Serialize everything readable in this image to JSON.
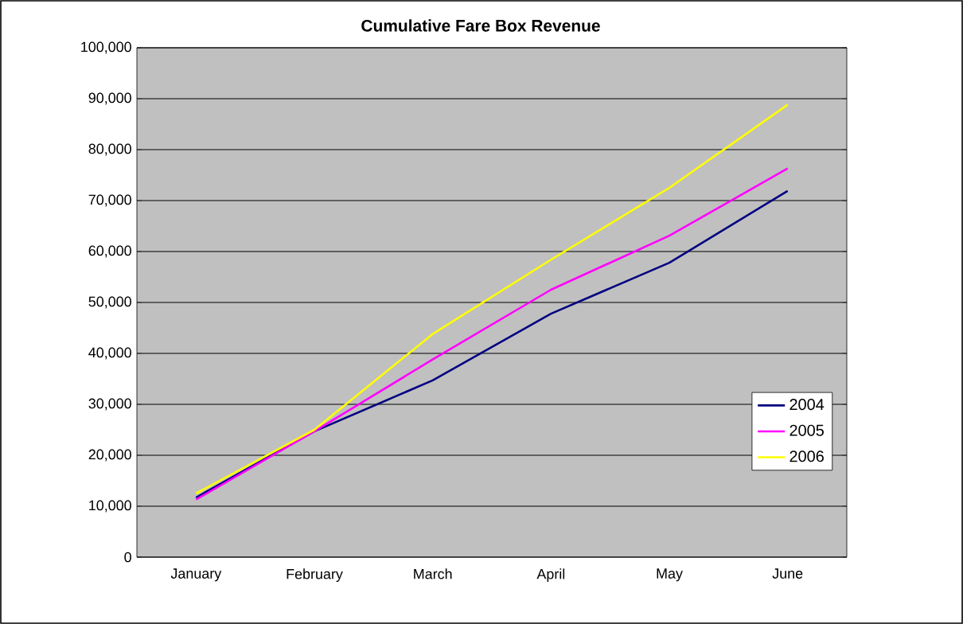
{
  "chart_data": {
    "type": "line",
    "title": "Cumulative Fare Box Revenue",
    "categories": [
      "January",
      "February",
      "March",
      "April",
      "May",
      "June"
    ],
    "series": [
      {
        "name": "2004",
        "color": "#000080",
        "values": [
          11700,
          24700,
          34700,
          47800,
          57800,
          71900
        ]
      },
      {
        "name": "2005",
        "color": "#ff00ff",
        "values": [
          11300,
          24700,
          38800,
          52500,
          63100,
          76300
        ]
      },
      {
        "name": "2006",
        "color": "#ffff00",
        "values": [
          12500,
          25000,
          43800,
          58400,
          72500,
          88800
        ]
      }
    ],
    "ylim": [
      0,
      100000
    ],
    "yticks": [
      {
        "value": 0,
        "label": "0"
      },
      {
        "value": 10000,
        "label": "10,000"
      },
      {
        "value": 20000,
        "label": "20,000"
      },
      {
        "value": 30000,
        "label": "30,000"
      },
      {
        "value": 40000,
        "label": "40,000"
      },
      {
        "value": 50000,
        "label": "50,000"
      },
      {
        "value": 60000,
        "label": "60,000"
      },
      {
        "value": 70000,
        "label": "70,000"
      },
      {
        "value": 80000,
        "label": "80,000"
      },
      {
        "value": 90000,
        "label": "90,000"
      },
      {
        "value": 100000,
        "label": "100,000"
      }
    ],
    "grid": "y",
    "legend": "right",
    "marker": "none",
    "line_style": "solid"
  }
}
